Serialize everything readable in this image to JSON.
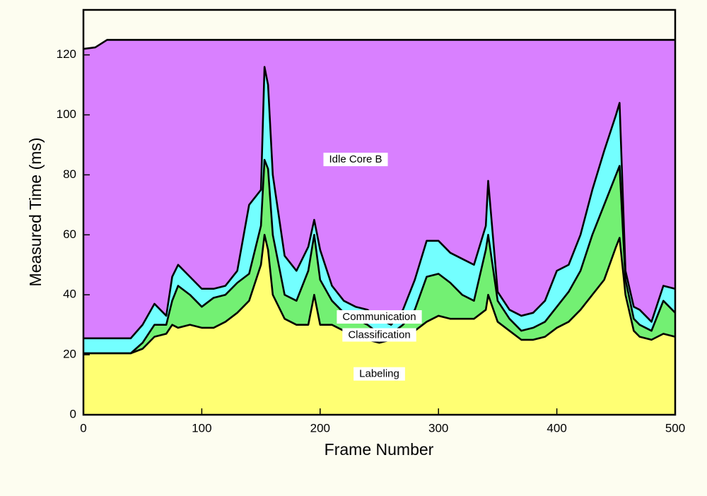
{
  "chart_data": {
    "type": "stacked_area",
    "xlabel": "Frame Number",
    "ylabel": "Measured Time (ms)",
    "x": [
      0,
      10,
      20,
      30,
      40,
      50,
      60,
      70,
      75,
      80,
      90,
      100,
      110,
      120,
      130,
      140,
      150,
      153,
      156,
      160,
      170,
      180,
      190,
      195,
      200,
      210,
      220,
      230,
      240,
      250,
      260,
      270,
      280,
      290,
      300,
      310,
      320,
      330,
      340,
      342,
      350,
      360,
      370,
      380,
      390,
      400,
      410,
      420,
      430,
      440,
      450,
      453,
      458,
      465,
      470,
      480,
      490,
      500
    ],
    "series": [
      {
        "name": "Labeling",
        "color": "#ffff73",
        "values": [
          20.5,
          20.5,
          20.5,
          20.5,
          20.5,
          22,
          26,
          27,
          30,
          29,
          30,
          29,
          29,
          31,
          34,
          38,
          50,
          60,
          55,
          40,
          32,
          30,
          30,
          40,
          30,
          30,
          28,
          27,
          25,
          24,
          25,
          26,
          28,
          31,
          33,
          32,
          32,
          32,
          35,
          40,
          31,
          28,
          25,
          25,
          26,
          29,
          31,
          35,
          40,
          45,
          56,
          59,
          40,
          28,
          26,
          25,
          27,
          26
        ]
      },
      {
        "name": "Classification",
        "color": "#73f073",
        "values": [
          0,
          0,
          0,
          0,
          0,
          2,
          4,
          3,
          8,
          14,
          10,
          7,
          10,
          9,
          10,
          9,
          13,
          25,
          27,
          20,
          8,
          8,
          18,
          20,
          15,
          8,
          6,
          5,
          5,
          3,
          2,
          4,
          7,
          15,
          14,
          12,
          8,
          6,
          20,
          20,
          7,
          4,
          3,
          4,
          5,
          7,
          10,
          13,
          20,
          25,
          24,
          24,
          5,
          4,
          4,
          3,
          11,
          8
        ]
      },
      {
        "name": "Communication",
        "color": "#73ffff",
        "values": [
          5,
          5,
          5,
          5,
          5,
          6,
          7,
          3,
          8,
          7,
          6,
          6,
          3,
          3,
          4,
          23,
          12,
          31,
          28,
          20,
          13,
          10,
          8,
          5,
          10,
          5,
          4,
          4,
          5,
          5,
          3,
          5,
          10,
          12,
          11,
          10,
          12,
          12,
          8,
          18,
          3,
          3,
          5,
          5,
          7,
          12,
          9,
          12,
          15,
          18,
          20,
          21,
          3,
          4,
          5,
          3,
          5,
          8
        ]
      },
      {
        "name": "Idle Core B",
        "color": "#d980ff",
        "values": [
          96.5,
          97,
          99.5,
          99.5,
          99.5,
          95,
          88,
          92,
          79,
          75,
          79,
          83,
          83,
          82,
          77,
          55,
          50,
          9,
          15,
          45,
          72,
          77,
          69,
          60,
          70,
          82,
          87,
          89,
          90,
          93,
          95,
          90,
          80,
          67,
          67,
          71,
          73,
          75,
          62,
          47,
          84,
          90,
          92,
          91,
          87,
          77,
          75,
          65,
          50,
          37,
          25,
          21,
          77,
          89,
          90,
          94,
          82,
          83
        ]
      }
    ],
    "xlim": [
      0,
      500
    ],
    "xticks": [
      0,
      100,
      200,
      300,
      400,
      500
    ],
    "ylim": [
      0,
      135
    ],
    "yticks": [
      0,
      20,
      40,
      60,
      80,
      100,
      120
    ]
  }
}
